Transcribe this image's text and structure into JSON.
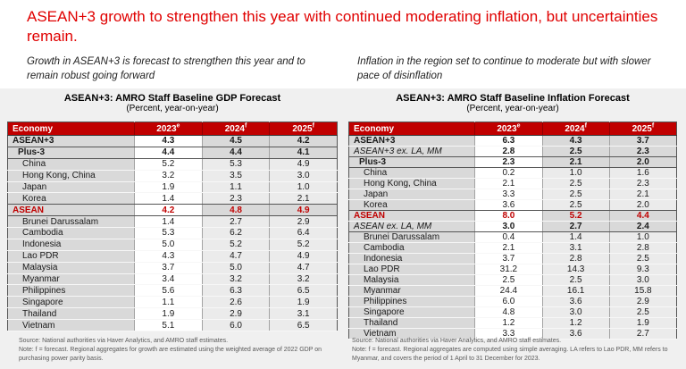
{
  "slide": {
    "title": "ASEAN+3 growth to strengthen this year with continued moderating inflation, but uncertainties remain.",
    "subtitle_left": "Growth in ASEAN+3 is forecast to strengthen this year and to remain robust going forward",
    "subtitle_right": "Inflation in the region set to continue to moderate but with slower pace of disinflation"
  },
  "colors": {
    "title_red": "#e00000",
    "table_header_red": "#c00000",
    "asean_highlight_red": "#c00000",
    "panel_background": "#f0f0f0",
    "name_cell_gray": "#d9d9d9",
    "value_cell_gray": "#ebebeb",
    "note_gray": "#595959"
  },
  "tables": [
    {
      "id": "gdp",
      "title": "ASEAN+3: AMRO Staff Baseline GDP Forecast",
      "subtitle": "(Percent, year-on-year)",
      "columns": [
        {
          "label": "Economy",
          "sup": ""
        },
        {
          "label": "2023",
          "sup": "e"
        },
        {
          "label": "2024",
          "sup": "f"
        },
        {
          "label": "2025",
          "sup": "f"
        }
      ],
      "rows": [
        {
          "economy": "ASEAN+3",
          "values": [
            "4.3",
            "4.5",
            "4.2"
          ],
          "style": "total",
          "rule_below": true
        },
        {
          "economy": "Plus-3",
          "values": [
            "4.4",
            "4.4",
            "4.1"
          ],
          "style": "subtotal",
          "rule_below": true
        },
        {
          "economy": "China",
          "values": [
            "5.2",
            "5.3",
            "4.9"
          ],
          "style": "country",
          "rule_below": false
        },
        {
          "economy": "Hong Kong, China",
          "values": [
            "3.2",
            "3.5",
            "3.0"
          ],
          "style": "country",
          "rule_below": false
        },
        {
          "economy": "Japan",
          "values": [
            "1.9",
            "1.1",
            "1.0"
          ],
          "style": "country",
          "rule_below": false
        },
        {
          "economy": "Korea",
          "values": [
            "1.4",
            "2.3",
            "2.1"
          ],
          "style": "country",
          "rule_below": true
        },
        {
          "economy": "ASEAN",
          "values": [
            "4.2",
            "4.8",
            "4.9"
          ],
          "style": "asean",
          "rule_below": true
        },
        {
          "economy": "Brunei Darussalam",
          "values": [
            "1.4",
            "2.7",
            "2.9"
          ],
          "style": "country",
          "rule_below": false
        },
        {
          "economy": "Cambodia",
          "values": [
            "5.3",
            "6.2",
            "6.4"
          ],
          "style": "country",
          "rule_below": false
        },
        {
          "economy": "Indonesia",
          "values": [
            "5.0",
            "5.2",
            "5.2"
          ],
          "style": "country",
          "rule_below": false
        },
        {
          "economy": "Lao PDR",
          "values": [
            "4.3",
            "4.7",
            "4.9"
          ],
          "style": "country",
          "rule_below": false
        },
        {
          "economy": "Malaysia",
          "values": [
            "3.7",
            "5.0",
            "4.7"
          ],
          "style": "country",
          "rule_below": false
        },
        {
          "economy": "Myanmar",
          "values": [
            "3.4",
            "3.2",
            "3.2"
          ],
          "style": "country",
          "rule_below": false
        },
        {
          "economy": "Philippines",
          "values": [
            "5.6",
            "6.3",
            "6.5"
          ],
          "style": "country",
          "rule_below": false
        },
        {
          "economy": "Singapore",
          "values": [
            "1.1",
            "2.6",
            "1.9"
          ],
          "style": "country",
          "rule_below": false
        },
        {
          "economy": "Thailand",
          "values": [
            "1.9",
            "2.9",
            "3.1"
          ],
          "style": "country",
          "rule_below": false
        },
        {
          "economy": "Vietnam",
          "values": [
            "5.1",
            "6.0",
            "6.5"
          ],
          "style": "country",
          "rule_below": false
        }
      ],
      "source": "Source: National authorities via Haver Analytics, and AMRO staff estimates.",
      "note": "Note: f = forecast. Regional aggregates for growth are estimated using the weighted average of 2022 GDP on purchasing power parity basis."
    },
    {
      "id": "inf",
      "title": "ASEAN+3: AMRO Staff Baseline Inflation Forecast",
      "subtitle": "(Percent, year-on-year)",
      "columns": [
        {
          "label": "Economy",
          "sup": ""
        },
        {
          "label": "2023",
          "sup": "e"
        },
        {
          "label": "2024",
          "sup": "f"
        },
        {
          "label": "2025",
          "sup": "f"
        }
      ],
      "rows": [
        {
          "economy": "ASEAN+3",
          "values": [
            "6.3",
            "4.3",
            "3.7"
          ],
          "style": "total",
          "rule_below": false
        },
        {
          "economy": "ASEAN+3 ex. LA, MM",
          "values": [
            "2.8",
            "2.5",
            "2.3"
          ],
          "style": "ex",
          "rule_below": true
        },
        {
          "economy": "Plus-3",
          "values": [
            "2.3",
            "2.1",
            "2.0"
          ],
          "style": "subtotal",
          "rule_below": true
        },
        {
          "economy": "China",
          "values": [
            "0.2",
            "1.0",
            "1.6"
          ],
          "style": "country",
          "rule_below": false
        },
        {
          "economy": "Hong Kong, China",
          "values": [
            "2.1",
            "2.5",
            "2.3"
          ],
          "style": "country",
          "rule_below": false
        },
        {
          "economy": "Japan",
          "values": [
            "3.3",
            "2.5",
            "2.1"
          ],
          "style": "country",
          "rule_below": false
        },
        {
          "economy": "Korea",
          "values": [
            "3.6",
            "2.5",
            "2.0"
          ],
          "style": "country",
          "rule_below": true
        },
        {
          "economy": "ASEAN",
          "values": [
            "8.0",
            "5.2",
            "4.4"
          ],
          "style": "asean",
          "rule_below": false
        },
        {
          "economy": "ASEAN ex. LA, MM",
          "values": [
            "3.0",
            "2.7",
            "2.4"
          ],
          "style": "ex",
          "rule_below": true
        },
        {
          "economy": "Brunei Darussalam",
          "values": [
            "0.4",
            "1.4",
            "1.0"
          ],
          "style": "country",
          "rule_below": false
        },
        {
          "economy": "Cambodia",
          "values": [
            "2.1",
            "3.1",
            "2.8"
          ],
          "style": "country",
          "rule_below": false
        },
        {
          "economy": "Indonesia",
          "values": [
            "3.7",
            "2.8",
            "2.5"
          ],
          "style": "country",
          "rule_below": false
        },
        {
          "economy": "Lao PDR",
          "values": [
            "31.2",
            "14.3",
            "9.3"
          ],
          "style": "country",
          "rule_below": false
        },
        {
          "economy": "Malaysia",
          "values": [
            "2.5",
            "2.5",
            "3.0"
          ],
          "style": "country",
          "rule_below": false
        },
        {
          "economy": "Myanmar",
          "values": [
            "24.4",
            "16.1",
            "15.8"
          ],
          "style": "country",
          "rule_below": false
        },
        {
          "economy": "Philippines",
          "values": [
            "6.0",
            "3.6",
            "2.9"
          ],
          "style": "country",
          "rule_below": false
        },
        {
          "economy": "Singapore",
          "values": [
            "4.8",
            "3.0",
            "2.5"
          ],
          "style": "country",
          "rule_below": false
        },
        {
          "economy": "Thailand",
          "values": [
            "1.2",
            "1.2",
            "1.9"
          ],
          "style": "country",
          "rule_below": false
        },
        {
          "economy": "Vietnam",
          "values": [
            "3.3",
            "3.6",
            "2.7"
          ],
          "style": "country",
          "rule_below": false
        }
      ],
      "source": "Source: National authorities via Haver Analytics, and AMRO staff estimates.",
      "note": "Note: f = forecast. Regional aggregates are computed using simple averaging. LA refers to Lao PDR, MM refers to Myanmar, and covers the period of 1 April to 31 December for 2023."
    }
  ]
}
